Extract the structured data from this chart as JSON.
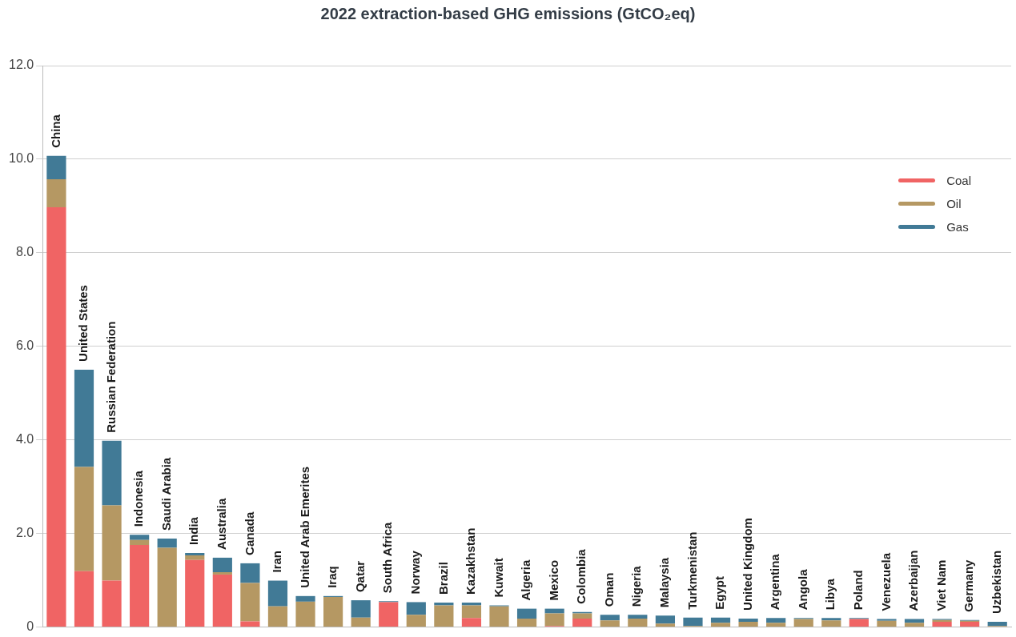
{
  "chart_data": {
    "type": "bar",
    "title": "2022 extraction-based GHG emissions (GtCO₂eq)",
    "stacked": true,
    "categories": [
      "China",
      "United States",
      "Russian Federation",
      "Indonesia",
      "Saudi Arabia",
      "India",
      "Australia",
      "Canada",
      "Iran",
      "United Arab Emerites",
      "Iraq",
      "Qatar",
      "South Africa",
      "Norway",
      "Brazil",
      "Kazakhstan",
      "Kuwait",
      "Algeria",
      "Mexico",
      "Colombia",
      "Oman",
      "Nigeria",
      "Malaysia",
      "Turkmenistan",
      "Egypt",
      "United Kingdom",
      "Argentina",
      "Angola",
      "Libya",
      "Poland",
      "Venezuela",
      "Azerbaijan",
      "Viet Nam",
      "Germany",
      "Uzbekistan"
    ],
    "series": [
      {
        "name": "Coal",
        "color": "#f06464",
        "values": [
          8.97,
          1.19,
          0.99,
          1.75,
          0,
          1.43,
          1.12,
          0.12,
          0,
          0,
          0,
          0,
          0.53,
          0,
          0,
          0.19,
          0,
          0,
          0.02,
          0.18,
          0,
          0,
          0,
          0,
          0,
          0,
          0,
          0,
          0,
          0.17,
          0,
          0,
          0.11,
          0.11,
          0
        ]
      },
      {
        "name": "Oil",
        "color": "#b59863",
        "values": [
          0.6,
          2.23,
          1.61,
          0.11,
          1.69,
          0.1,
          0.05,
          0.82,
          0.44,
          0.54,
          0.64,
          0.2,
          0,
          0.26,
          0.46,
          0.27,
          0.44,
          0.18,
          0.27,
          0.11,
          0.14,
          0.18,
          0.07,
          0.02,
          0.09,
          0.11,
          0.09,
          0.17,
          0.14,
          0,
          0.13,
          0.09,
          0.04,
          0.02,
          0.02
        ]
      },
      {
        "name": "Gas",
        "color": "#417a96",
        "values": [
          0.5,
          2.08,
          1.38,
          0.11,
          0.2,
          0.05,
          0.31,
          0.42,
          0.55,
          0.12,
          0.02,
          0.37,
          0.02,
          0.27,
          0.06,
          0.06,
          0.02,
          0.21,
          0.1,
          0.03,
          0.12,
          0.08,
          0.17,
          0.18,
          0.11,
          0.07,
          0.1,
          0.02,
          0.05,
          0.02,
          0.04,
          0.08,
          0.02,
          0.02,
          0.09
        ]
      }
    ],
    "ylim": [
      0,
      12
    ],
    "yticks": [
      0,
      {
        "value": 2,
        "label": "2.0"
      },
      {
        "value": 4,
        "label": "4.0"
      },
      {
        "value": 6,
        "label": "6.0"
      },
      {
        "value": 8,
        "label": "8.0"
      },
      {
        "value": 10,
        "label": "10.0"
      },
      {
        "value": 12,
        "label": "12.0"
      }
    ],
    "grid": "y",
    "legend": "top right",
    "tick_labels": "y"
  }
}
